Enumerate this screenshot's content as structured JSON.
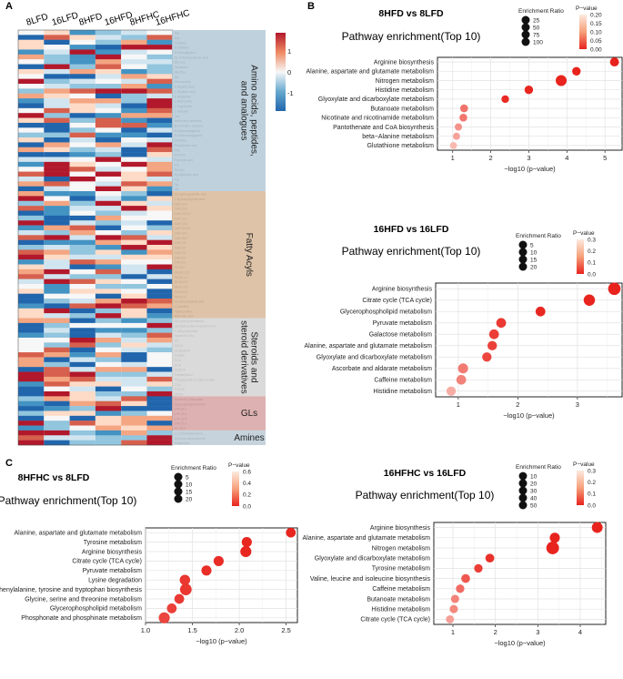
{
  "panel_letters": [
    "A",
    "B",
    "C"
  ],
  "colors": {
    "low": "#2066ac",
    "mid": "#f6f7f7",
    "high": "#b2182b",
    "p_low": "#e8231d",
    "p_high": "#fdeadf"
  },
  "heatmap": {
    "columns": [
      "8LFD",
      "16LFD",
      "8HFD",
      "16HFD",
      "8HFHC",
      "16HFHC"
    ],
    "scale_ticks": [
      "1",
      "0",
      "-1"
    ],
    "groups": [
      {
        "label_lines": [
          "Amino acids, peptides,",
          "and analogues"
        ],
        "color": "#b4c9d7",
        "metabolites": [
          "Ala",
          "Asp",
          "Citrulline",
          "D-Histidine",
          "Dimethylglycine",
          "DL-2-Aminooctanoic acid",
          "Glu-Leu",
          "Glutamine",
          "Gly-Phe",
          "His",
          "Homoserine",
          "L-Aspartic acid",
          "L-Glutamic acid",
          "L-Glutamine",
          "L-Methionine",
          "L-Tryptophan",
          "L-Tyrosine",
          "Leu",
          "Methionine sulfoxide",
          "N-a-Acetyl-L-arginine",
          "N-Heptanoylglycine",
          "N-Undecanoylglycine",
          "Ornithine",
          "Pantothenic acid",
          "Phe",
          "Phe-Pro",
          "Pipecolic acid",
          "Pro",
          "Pro-leu",
          "Pyroglutamic acid",
          "Trp",
          "Tyr",
          "Val"
        ]
      },
      {
        "label_lines": [
          "Fatty Acyls"
        ],
        "color": "#d8b899",
        "metabolites": [
          "16-Hydroxypalmitic acid",
          "2-Hydroxymyristic acid",
          "CAR 10:0",
          "CAR 12:0",
          "CAR 12:0;O",
          "CAR 12:1",
          "CAR 13:0",
          "CAR 14:0;O",
          "CAR 14:1",
          "CAR 16:0",
          "CAR 2:0",
          "CAR 3:0",
          "CAR 4:0",
          "CAR 5:0",
          "CAR 8:1",
          "FA 12:0",
          "FA 18:1;O2",
          "FA 18:1;O",
          "FA 18:2;O",
          "FA 20:3;O",
          "FA 22:6;O",
          "FA 5:0;O",
          "Hexadecanedioic acid",
          "L-Carnitine",
          "Tiglylcarnitine",
          "Ricinoleic acid"
        ]
      },
      {
        "label_lines": [
          "Steroids and",
          "steroid derivatives"
        ],
        "color": "#d3d3d3",
        "metabolites": [
          "25-Hydroxycholesterol",
          "3a-Hydroxy-5b-cholestan-6-one",
          "7-dehydrocholate",
          "Apocholic acid",
          "CA",
          "CDCA",
          "Cholesterol",
          "Cortisol",
          "DCA",
          "GCA",
          "GUDCA",
          "Pentamycinol",
          "Pregnanediol-3-O-glucuronide",
          "TCA",
          "TCDCS",
          "UDCA"
        ]
      },
      {
        "label_lines": [
          "GLs"
        ],
        "color": "#d7a3a3",
        "metabolites": [
          "Glycerol 3-phosphate",
          "Glycerophosphocholine",
          "LPA 18:0",
          "LPE 18:1",
          "LPC 20:4",
          "LPA 22:6",
          "PC 32:2"
        ]
      },
      {
        "label_lines": [
          "Amines"
        ],
        "color": "#bccbd6",
        "metabolites": [
          "1,2-Dimethylbenzene",
          "Linoleoyl ethanolamide",
          "Octylamine"
        ]
      }
    ]
  },
  "chart_data": [
    {
      "type": "scatter",
      "panel": "B",
      "title": "8HFD vs  8LFD",
      "subtitle": "Pathway enrichment(Top 10)",
      "xlabel": "−log10 (p−value)",
      "xlim": [
        0.6,
        5.45
      ],
      "xticks": [
        1,
        2,
        3,
        4,
        5
      ],
      "legend_size_title": "Enrichment Ratio",
      "size_legend": [
        25,
        50,
        75,
        100
      ],
      "size_max": 100,
      "legend_p_title": "P−value",
      "p_ticks": [
        "0.20",
        "0.15",
        "0.10",
        "0.05",
        "0.00"
      ],
      "p_max": 0.2,
      "pathways": [
        "Arginine biosynthesis",
        "Alanine, aspartate and glutamate metabolism",
        "Nitrogen metabolism",
        "Histidine metabolism",
        "Glyoxylate and dicarboxylate metabolism",
        "Butanoate metabolism",
        "Nicotinate and nicotinamide metabolism",
        "Pantothenate and CoA biosynthesis",
        "beta−Alanine metabolism",
        "Glutathione metabolism"
      ],
      "x": [
        5.25,
        4.25,
        3.85,
        3.0,
        2.38,
        1.3,
        1.28,
        1.15,
        1.1,
        1.02
      ],
      "size": [
        30,
        25,
        58,
        25,
        16,
        18,
        17,
        13,
        12,
        11
      ],
      "p": [
        0.0,
        0.0,
        0.0,
        0.001,
        0.004,
        0.05,
        0.052,
        0.07,
        0.08,
        0.095
      ]
    },
    {
      "type": "scatter",
      "panel": "B",
      "title": "16HFD vs  16LFD",
      "subtitle": "Pathway enrichment(Top 10)",
      "xlabel": "−log10 (p−value)",
      "xlim": [
        0.62,
        3.75
      ],
      "xticks": [
        1,
        2,
        3
      ],
      "legend_size_title": "Enrichment Ratio",
      "size_legend": [
        5,
        10,
        15,
        20
      ],
      "size_max": 20,
      "legend_p_title": "P−value",
      "p_ticks": [
        "0.3",
        "0.2",
        "0.1",
        "0.0"
      ],
      "p_max": 0.3,
      "pathways": [
        "Arginine biosynthesis",
        "Citrate cycle (TCA cycle)",
        "Glycerophospholipid metabolism",
        "Pyruvate metabolism",
        "Galactose metabolism",
        "Alanine, aspartate and glutamate metabolism",
        "Glyoxylate and dicarboxylate metabolism",
        "Ascorbate and aldarate metabolism",
        "Caffeine metabolism",
        "Histidine metabolism"
      ],
      "x": [
        3.62,
        3.2,
        2.38,
        1.72,
        1.6,
        1.57,
        1.48,
        1.08,
        1.05,
        0.88
      ],
      "size": [
        17,
        13,
        8,
        8,
        8,
        7,
        7,
        9,
        8,
        7
      ],
      "p": [
        0.0,
        0.001,
        0.004,
        0.02,
        0.025,
        0.027,
        0.033,
        0.083,
        0.09,
        0.13
      ]
    },
    {
      "type": "scatter",
      "panel": "C",
      "title": "8HFHC vs  8LFD",
      "subtitle": "Pathway enrichment(Top 10)",
      "xlabel": "−log10 (p−value)",
      "xlim": [
        1.0,
        2.62
      ],
      "xticks": [
        1.0,
        1.5,
        2.0,
        2.5
      ],
      "xtick_labels": [
        "1.0",
        "1.5",
        "2.0",
        "2.5"
      ],
      "legend_size_title": "Enrichment Ratio",
      "size_legend": [
        5,
        10,
        15,
        20
      ],
      "size_max": 20,
      "legend_p_title": "P−value",
      "p_ticks": [
        "0.6",
        "0.4",
        "0.2",
        "0.0"
      ],
      "p_max": 0.6,
      "pathways": [
        "Alanine, aspartate and glutamate metabolism",
        "Tyrosine metabolism",
        "Arginine biosynthesis",
        "Citrate cycle (TCA cycle)",
        "Pyruvate metabolism",
        "Lysine degradation",
        "Phenylalanine, tyrosine and tryptophan biosynthesis",
        "Glycine, serine and threonine metabolism",
        "Glycerophospholipid metabolism",
        "Phosphonate and phosphinate metabolism"
      ],
      "x": [
        2.55,
        2.08,
        2.07,
        1.78,
        1.65,
        1.42,
        1.43,
        1.36,
        1.28,
        1.2
      ],
      "size": [
        8,
        9,
        12,
        9,
        9,
        10,
        14,
        8,
        8,
        12
      ],
      "p": [
        0.003,
        0.008,
        0.008,
        0.017,
        0.022,
        0.038,
        0.037,
        0.044,
        0.052,
        0.063
      ]
    },
    {
      "type": "scatter",
      "panel": "C",
      "title": "16HFHC vs  16LFD",
      "subtitle": "Pathway enrichment(Top 10)",
      "xlabel": "−log10 (p−value)",
      "xlim": [
        0.55,
        4.6
      ],
      "xticks": [
        1,
        2,
        3,
        4
      ],
      "legend_size_title": "Enrichment Ratio",
      "size_legend": [
        10,
        20,
        30,
        40,
        50
      ],
      "size_max": 50,
      "legend_p_title": "P−value",
      "p_ticks": [
        "0.3",
        "0.2",
        "0.1",
        "0.0"
      ],
      "p_max": 0.3,
      "pathways": [
        "Arginine biosynthesis",
        "Alanine, aspartate and glutamate metabolism",
        "Nitrogen metabolism",
        "Glyoxylate and dicarboxylate metabolism",
        "Tyrosine metabolism",
        "Valine, leucine and isoleucine biosynthesis",
        "Caffeine metabolism",
        "Butanoate metabolism",
        "Histidine metabolism",
        "Citrate cycle (TCA cycle)"
      ],
      "x": [
        4.4,
        3.4,
        3.35,
        1.87,
        1.6,
        1.3,
        1.17,
        1.05,
        1.02,
        0.93
      ],
      "size": [
        28,
        22,
        45,
        14,
        12,
        14,
        12,
        11,
        11,
        10
      ],
      "p": [
        0.0,
        0.0,
        0.0,
        0.013,
        0.025,
        0.05,
        0.068,
        0.09,
        0.095,
        0.117
      ]
    }
  ]
}
